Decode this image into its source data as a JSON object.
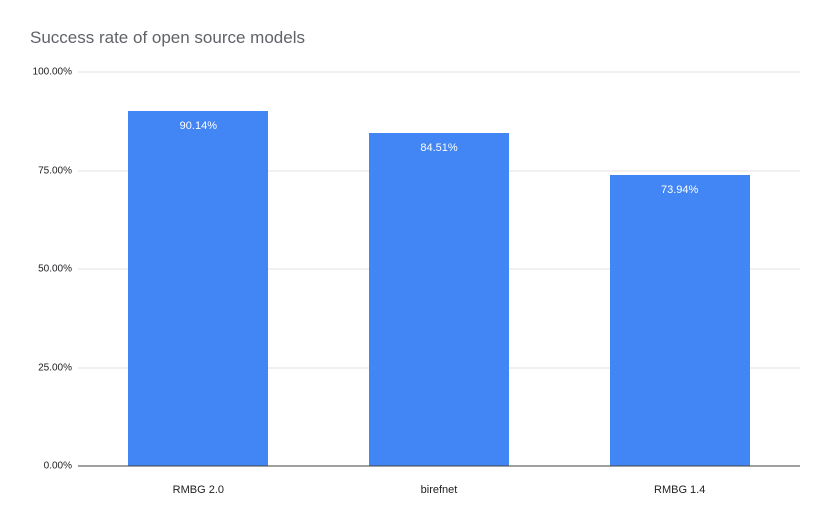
{
  "chart_data": {
    "type": "bar",
    "title": "Success rate of open source models",
    "categories": [
      "RMBG 2.0",
      "birefnet",
      "RMBG 1.4"
    ],
    "values": [
      90.14,
      84.51,
      73.94
    ],
    "value_labels": [
      "90.14%",
      "84.51%",
      "73.94%"
    ],
    "xlabel": "",
    "ylabel": "",
    "ylim": [
      0,
      100
    ],
    "y_ticks": [
      "0.00%",
      "25.00%",
      "50.00%",
      "75.00%",
      "100.00%"
    ],
    "y_tick_values": [
      0,
      25,
      50,
      75,
      100
    ],
    "grid": true,
    "legend": "none",
    "bar_color": "#4285f4",
    "bar_label_color": "#ffffff",
    "title_color": "#5f6368",
    "gridline_color": "#e3e3e3",
    "axis_line_color": "#424242"
  }
}
